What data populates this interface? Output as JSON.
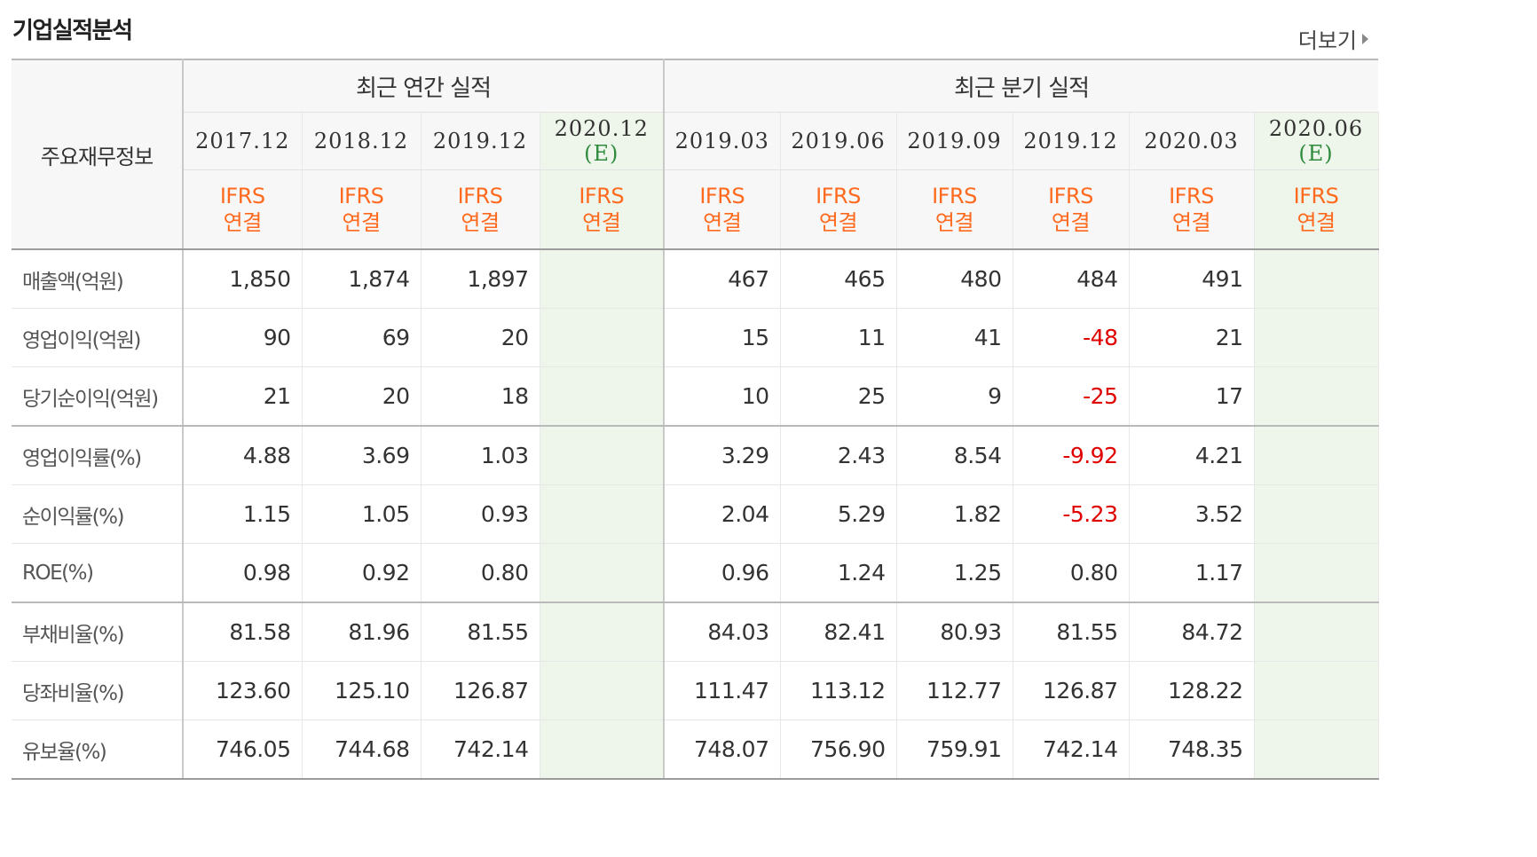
{
  "header": {
    "title": "기업실적분석",
    "more_label": "더보기"
  },
  "table": {
    "row_header_label": "주요재무정보",
    "groups": {
      "annual": "최근 연간 실적",
      "quarterly": "최근 분기 실적"
    },
    "periods": [
      {
        "date": "2017.12",
        "est": "",
        "basis1": "IFRS",
        "basis2": "연결"
      },
      {
        "date": "2018.12",
        "est": "",
        "basis1": "IFRS",
        "basis2": "연결"
      },
      {
        "date": "2019.12",
        "est": "",
        "basis1": "IFRS",
        "basis2": "연결"
      },
      {
        "date": "2020.12",
        "est": "(E)",
        "basis1": "IFRS",
        "basis2": "연결"
      },
      {
        "date": "2019.03",
        "est": "",
        "basis1": "IFRS",
        "basis2": "연결"
      },
      {
        "date": "2019.06",
        "est": "",
        "basis1": "IFRS",
        "basis2": "연결"
      },
      {
        "date": "2019.09",
        "est": "",
        "basis1": "IFRS",
        "basis2": "연결"
      },
      {
        "date": "2019.12",
        "est": "",
        "basis1": "IFRS",
        "basis2": "연결"
      },
      {
        "date": "2020.03",
        "est": "",
        "basis1": "IFRS",
        "basis2": "연결"
      },
      {
        "date": "2020.06",
        "est": "(E)",
        "basis1": "IFRS",
        "basis2": "연결"
      }
    ],
    "rows": [
      {
        "label": "매출액(억원)",
        "values": [
          "1,850",
          "1,874",
          "1,897",
          "",
          "467",
          "465",
          "480",
          "484",
          "491",
          ""
        ]
      },
      {
        "label": "영업이익(억원)",
        "values": [
          "90",
          "69",
          "20",
          "",
          "15",
          "11",
          "41",
          "-48",
          "21",
          ""
        ]
      },
      {
        "label": "당기순이익(억원)",
        "values": [
          "21",
          "20",
          "18",
          "",
          "10",
          "25",
          "9",
          "-25",
          "17",
          ""
        ]
      },
      {
        "label": "영업이익률(%)",
        "values": [
          "4.88",
          "3.69",
          "1.03",
          "",
          "3.29",
          "2.43",
          "8.54",
          "-9.92",
          "4.21",
          ""
        ]
      },
      {
        "label": "순이익률(%)",
        "values": [
          "1.15",
          "1.05",
          "0.93",
          "",
          "2.04",
          "5.29",
          "1.82",
          "-5.23",
          "3.52",
          ""
        ]
      },
      {
        "label": "ROE(%)",
        "values": [
          "0.98",
          "0.92",
          "0.80",
          "",
          "0.96",
          "1.24",
          "1.25",
          "0.80",
          "1.17",
          ""
        ]
      },
      {
        "label": "부채비율(%)",
        "values": [
          "81.58",
          "81.96",
          "81.55",
          "",
          "84.03",
          "82.41",
          "80.93",
          "81.55",
          "84.72",
          ""
        ]
      },
      {
        "label": "당좌비율(%)",
        "values": [
          "123.60",
          "125.10",
          "126.87",
          "",
          "111.47",
          "113.12",
          "112.77",
          "126.87",
          "128.22",
          ""
        ]
      },
      {
        "label": "유보율(%)",
        "values": [
          "746.05",
          "744.68",
          "742.14",
          "",
          "748.07",
          "756.90",
          "759.91",
          "742.14",
          "748.35",
          ""
        ]
      }
    ]
  },
  "colors": {
    "ifrs": "#ff6a1f",
    "estimate": "#2e8b3d",
    "negative": "#e00000",
    "estimate_bg": "#eef5ea"
  }
}
